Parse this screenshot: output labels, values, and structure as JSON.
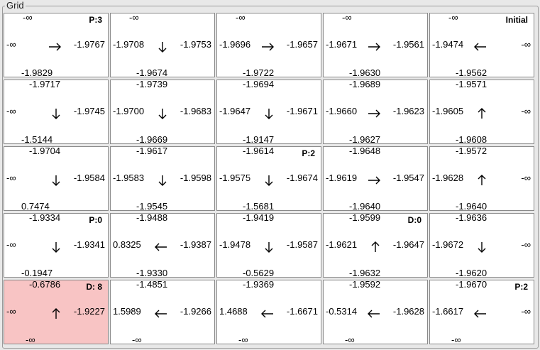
{
  "window": {
    "group_title": "Grid"
  },
  "grid": {
    "rows": [
      [
        {
          "top": "-∞",
          "left": "-∞",
          "right": "-1.9767",
          "bottom": "-1.9829",
          "arrow": "right",
          "tag": "P:3",
          "highlight": false
        },
        {
          "top": "-∞",
          "left": "-1.9708",
          "right": "-1.9753",
          "bottom": "-1.9674",
          "arrow": "down",
          "tag": "",
          "highlight": false
        },
        {
          "top": "-∞",
          "left": "-1.9696",
          "right": "-1.9657",
          "bottom": "-1.9722",
          "arrow": "right",
          "tag": "",
          "highlight": false
        },
        {
          "top": "-∞",
          "left": "-1.9671",
          "right": "-1.9561",
          "bottom": "-1.9630",
          "arrow": "right",
          "tag": "",
          "highlight": false
        },
        {
          "top": "-∞",
          "left": "-1.9474",
          "right": "-∞",
          "bottom": "-1.9562",
          "arrow": "left",
          "tag": "Initial",
          "highlight": false
        }
      ],
      [
        {
          "top": "-1.9717",
          "left": "-∞",
          "right": "-1.9745",
          "bottom": "-1.5144",
          "arrow": "down",
          "tag": "",
          "highlight": false
        },
        {
          "top": "-1.9739",
          "left": "-1.9700",
          "right": "-1.9683",
          "bottom": "-1.9669",
          "arrow": "down",
          "tag": "",
          "highlight": false
        },
        {
          "top": "-1.9694",
          "left": "-1.9647",
          "right": "-1.9671",
          "bottom": "-1.9147",
          "arrow": "down",
          "tag": "",
          "highlight": false
        },
        {
          "top": "-1.9689",
          "left": "-1.9660",
          "right": "-1.9623",
          "bottom": "-1.9627",
          "arrow": "right",
          "tag": "",
          "highlight": false
        },
        {
          "top": "-1.9571",
          "left": "-1.9605",
          "right": "-∞",
          "bottom": "-1.9608",
          "arrow": "up",
          "tag": "",
          "highlight": false
        }
      ],
      [
        {
          "top": "-1.9704",
          "left": "-∞",
          "right": "-1.9584",
          "bottom": "0.7474",
          "arrow": "down",
          "tag": "",
          "highlight": false
        },
        {
          "top": "-1.9617",
          "left": "-1.9583",
          "right": "-1.9598",
          "bottom": "-1.9545",
          "arrow": "down",
          "tag": "",
          "highlight": false
        },
        {
          "top": "-1.9614",
          "left": "-1.9575",
          "right": "-1.9674",
          "bottom": "-1.5681",
          "arrow": "down",
          "tag": "P:2",
          "highlight": false
        },
        {
          "top": "-1.9648",
          "left": "-1.9619",
          "right": "-1.9547",
          "bottom": "-1.9640",
          "arrow": "right",
          "tag": "",
          "highlight": false
        },
        {
          "top": "-1.9572",
          "left": "-1.9628",
          "right": "-∞",
          "bottom": "-1.9640",
          "arrow": "up",
          "tag": "",
          "highlight": false
        }
      ],
      [
        {
          "top": "-1.9334",
          "left": "-∞",
          "right": "-1.9341",
          "bottom": "-0.1947",
          "arrow": "down",
          "tag": "P:0",
          "highlight": false
        },
        {
          "top": "-1.9488",
          "left": "0.8325",
          "right": "-1.9387",
          "bottom": "-1.9330",
          "arrow": "left",
          "tag": "",
          "highlight": false
        },
        {
          "top": "-1.9419",
          "left": "-1.9478",
          "right": "-1.9587",
          "bottom": "-0.5629",
          "arrow": "down",
          "tag": "",
          "highlight": false
        },
        {
          "top": "-1.9599",
          "left": "-1.9621",
          "right": "-1.9647",
          "bottom": "-1.9632",
          "arrow": "up",
          "tag": "D:0",
          "highlight": false
        },
        {
          "top": "-1.9636",
          "left": "-1.9672",
          "right": "-∞",
          "bottom": "-1.9620",
          "arrow": "down",
          "tag": "",
          "highlight": false
        }
      ],
      [
        {
          "top": "-0.6786",
          "left": "-∞",
          "right": "-1.9227",
          "bottom": "-∞",
          "arrow": "up",
          "tag": "D: 8",
          "highlight": true
        },
        {
          "top": "-1.4851",
          "left": "1.5989",
          "right": "-1.9266",
          "bottom": "-∞",
          "arrow": "left",
          "tag": "",
          "highlight": false
        },
        {
          "top": "-1.9369",
          "left": "1.4688",
          "right": "-1.6671",
          "bottom": "-∞",
          "arrow": "left",
          "tag": "",
          "highlight": false
        },
        {
          "top": "-1.9592",
          "left": "-0.5314",
          "right": "-1.9628",
          "bottom": "-∞",
          "arrow": "left",
          "tag": "",
          "highlight": false
        },
        {
          "top": "-1.9670",
          "left": "-1.6617",
          "right": "-∞",
          "bottom": "-∞",
          "arrow": "left",
          "tag": "P:2",
          "highlight": false
        }
      ]
    ]
  }
}
